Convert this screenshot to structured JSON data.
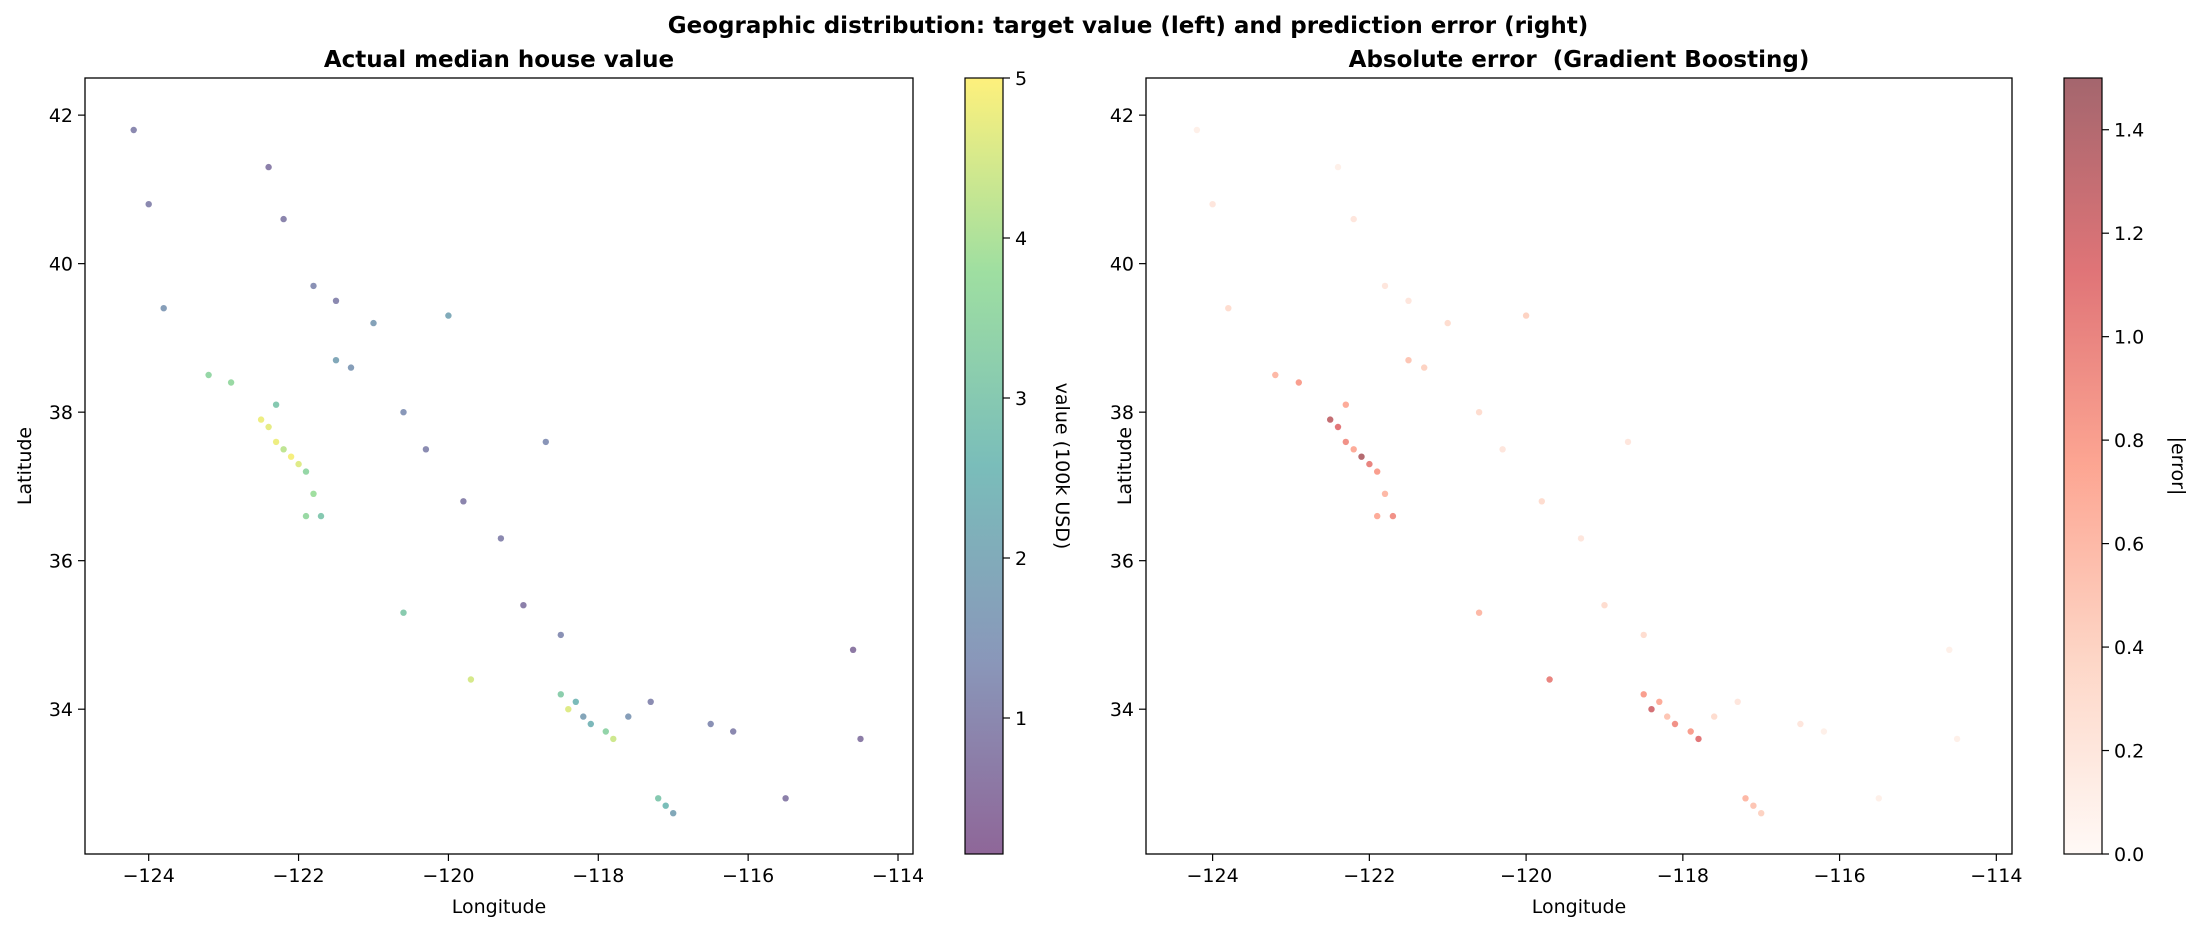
{
  "suptitle": "Geographic distribution: target value (left) and prediction error (right)",
  "chart_data": [
    {
      "type": "scatter",
      "title": "Actual median house value",
      "xlabel": "Longitude",
      "ylabel": "Latitude",
      "xlim": [
        -124.85,
        -113.8
      ],
      "ylim": [
        32.05,
        42.5
      ],
      "xticks": [
        -124,
        -122,
        -120,
        -118,
        -116,
        -114
      ],
      "xtick_labels": [
        "−124",
        "−122",
        "−120",
        "−118",
        "−116",
        "−114"
      ],
      "yticks": [
        34,
        36,
        38,
        40,
        42
      ],
      "ytick_labels": [
        "34",
        "36",
        "38",
        "40",
        "42"
      ],
      "colormap": "viridis",
      "alpha": 0.6,
      "colorbar": {
        "label": "value (100k USD)",
        "min": 0.15,
        "max": 5.0,
        "ticks": [
          1,
          2,
          3,
          4,
          5
        ],
        "tick_labels": [
          "1",
          "2",
          "3",
          "4",
          "5"
        ]
      },
      "grid": false,
      "points": [
        [
          -124.2,
          41.8,
          1.0
        ],
        [
          -124.0,
          40.8,
          1.0
        ],
        [
          -123.8,
          39.4,
          1.6
        ],
        [
          -123.2,
          38.5,
          3.5
        ],
        [
          -122.9,
          38.4,
          3.6
        ],
        [
          -122.5,
          37.9,
          4.8
        ],
        [
          -122.4,
          37.8,
          4.7
        ],
        [
          -122.3,
          37.6,
          4.8
        ],
        [
          -122.2,
          37.5,
          4.2
        ],
        [
          -122.1,
          37.4,
          4.9
        ],
        [
          -122.0,
          37.3,
          4.6
        ],
        [
          -121.9,
          37.2,
          3.5
        ],
        [
          -121.8,
          36.9,
          3.8
        ],
        [
          -121.7,
          36.6,
          3.0
        ],
        [
          -122.3,
          38.1,
          3.0
        ],
        [
          -122.2,
          40.6,
          0.9
        ],
        [
          -122.4,
          41.3,
          0.8
        ],
        [
          -121.3,
          38.6,
          1.6
        ],
        [
          -121.5,
          38.7,
          1.9
        ],
        [
          -121.0,
          39.2,
          1.7
        ],
        [
          -121.5,
          39.5,
          1.0
        ],
        [
          -121.8,
          39.7,
          1.2
        ],
        [
          -120.6,
          38.0,
          1.4
        ],
        [
          -120.3,
          37.5,
          1.1
        ],
        [
          -119.8,
          36.8,
          0.9
        ],
        [
          -119.3,
          36.3,
          1.0
        ],
        [
          -119.0,
          35.4,
          0.8
        ],
        [
          -118.5,
          35.0,
          1.2
        ],
        [
          -118.5,
          34.2,
          3.2
        ],
        [
          -118.4,
          34.0,
          4.6
        ],
        [
          -118.3,
          34.1,
          2.5
        ],
        [
          -118.2,
          33.9,
          1.8
        ],
        [
          -118.1,
          33.8,
          2.4
        ],
        [
          -117.9,
          33.7,
          3.4
        ],
        [
          -117.8,
          33.6,
          4.4
        ],
        [
          -117.6,
          33.9,
          1.6
        ],
        [
          -117.3,
          34.1,
          1.1
        ],
        [
          -117.2,
          32.8,
          3.0
        ],
        [
          -117.1,
          32.7,
          2.6
        ],
        [
          -117.0,
          32.6,
          1.9
        ],
        [
          -116.5,
          33.8,
          1.2
        ],
        [
          -116.2,
          33.7,
          1.0
        ],
        [
          -115.5,
          32.8,
          0.8
        ],
        [
          -114.6,
          34.8,
          0.6
        ],
        [
          -114.5,
          33.6,
          0.7
        ],
        [
          -119.7,
          34.4,
          4.5
        ],
        [
          -120.6,
          35.3,
          3.1
        ],
        [
          -121.9,
          36.6,
          3.6
        ],
        [
          -120.0,
          39.3,
          2.0
        ],
        [
          -118.7,
          37.6,
          1.3
        ]
      ]
    },
    {
      "type": "scatter",
      "title": "Absolute error  (Gradient Boosting)",
      "xlabel": "Longitude",
      "ylabel": "Latitude",
      "xlim": [
        -124.85,
        -113.8
      ],
      "ylim": [
        32.05,
        42.5
      ],
      "xticks": [
        -124,
        -122,
        -120,
        -118,
        -116,
        -114
      ],
      "xtick_labels": [
        "−124",
        "−122",
        "−120",
        "−118",
        "−116",
        "−114"
      ],
      "yticks": [
        34,
        36,
        38,
        40,
        42
      ],
      "ytick_labels": [
        "34",
        "36",
        "38",
        "40",
        "42"
      ],
      "colormap": "Reds",
      "alpha": 0.6,
      "colorbar": {
        "label": "|error|",
        "min": 0.0,
        "max": 1.5,
        "ticks": [
          0.0,
          0.2,
          0.4,
          0.6,
          0.8,
          1.0,
          1.2,
          1.4
        ],
        "tick_labels": [
          "0.0",
          "0.2",
          "0.4",
          "0.6",
          "0.8",
          "1.0",
          "1.2",
          "1.4"
        ]
      },
      "grid": false,
      "points": [
        [
          -124.2,
          41.8,
          0.1
        ],
        [
          -124.0,
          40.8,
          0.2
        ],
        [
          -123.8,
          39.4,
          0.3
        ],
        [
          -123.2,
          38.5,
          0.6
        ],
        [
          -122.9,
          38.4,
          0.8
        ],
        [
          -122.5,
          37.9,
          1.3
        ],
        [
          -122.4,
          37.8,
          1.1
        ],
        [
          -122.3,
          37.6,
          0.9
        ],
        [
          -122.2,
          37.5,
          0.7
        ],
        [
          -122.1,
          37.4,
          1.4
        ],
        [
          -122.0,
          37.3,
          1.0
        ],
        [
          -121.9,
          37.2,
          0.8
        ],
        [
          -121.8,
          36.9,
          0.6
        ],
        [
          -121.7,
          36.6,
          0.9
        ],
        [
          -122.3,
          38.1,
          0.7
        ],
        [
          -122.2,
          40.6,
          0.2
        ],
        [
          -122.4,
          41.3,
          0.1
        ],
        [
          -121.3,
          38.6,
          0.4
        ],
        [
          -121.5,
          38.7,
          0.5
        ],
        [
          -121.0,
          39.2,
          0.3
        ],
        [
          -121.5,
          39.5,
          0.2
        ],
        [
          -121.8,
          39.7,
          0.2
        ],
        [
          -120.6,
          38.0,
          0.3
        ],
        [
          -120.3,
          37.5,
          0.2
        ],
        [
          -119.8,
          36.8,
          0.3
        ],
        [
          -119.3,
          36.3,
          0.2
        ],
        [
          -119.0,
          35.4,
          0.3
        ],
        [
          -118.5,
          35.0,
          0.3
        ],
        [
          -118.5,
          34.2,
          0.8
        ],
        [
          -118.4,
          34.0,
          1.2
        ],
        [
          -118.3,
          34.1,
          0.7
        ],
        [
          -118.2,
          33.9,
          0.5
        ],
        [
          -118.1,
          33.8,
          0.9
        ],
        [
          -117.9,
          33.7,
          0.8
        ],
        [
          -117.8,
          33.6,
          1.1
        ],
        [
          -117.6,
          33.9,
          0.3
        ],
        [
          -117.3,
          34.1,
          0.2
        ],
        [
          -117.2,
          32.8,
          0.6
        ],
        [
          -117.1,
          32.7,
          0.5
        ],
        [
          -117.0,
          32.6,
          0.4
        ],
        [
          -116.5,
          33.8,
          0.2
        ],
        [
          -116.2,
          33.7,
          0.1
        ],
        [
          -115.5,
          32.8,
          0.1
        ],
        [
          -114.6,
          34.8,
          0.1
        ],
        [
          -114.5,
          33.6,
          0.1
        ],
        [
          -119.7,
          34.4,
          1.0
        ],
        [
          -120.6,
          35.3,
          0.6
        ],
        [
          -121.9,
          36.6,
          0.7
        ],
        [
          -120.0,
          39.3,
          0.4
        ],
        [
          -118.7,
          37.6,
          0.2
        ]
      ]
    }
  ]
}
